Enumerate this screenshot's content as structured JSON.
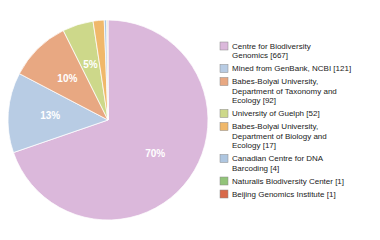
{
  "chart_data": {
    "type": "pie",
    "categories": [
      "Centre for Biodiversity\nGenomics [667]",
      "Mined from GenBank, NCBI [121]",
      "Babes-Bolyai University,\nDepartment of Taxonomy and\nEcology [92]",
      "University of Guelph [52]",
      "Babes-Bolyai University,\nDepartment of Biology and\nEcology [17]",
      "Canadian Centre for DNA\nBarcoding [4]",
      "Naturalis Biodiversity Center [1]",
      "Beijing Genomics Institute [1]"
    ],
    "values": [
      70,
      13,
      10,
      5,
      1.8,
      0.4,
      0.1,
      0.1
    ],
    "value_labels": [
      "70%",
      "13%",
      "10%",
      "5%",
      null,
      null,
      null,
      null
    ],
    "colors": [
      "#dbb8db",
      "#b8cce4",
      "#e8a882",
      "#cdd88a",
      "#f0b86a",
      "#aec6e0",
      "#92c47a",
      "#d8694a"
    ],
    "legend": "right"
  }
}
